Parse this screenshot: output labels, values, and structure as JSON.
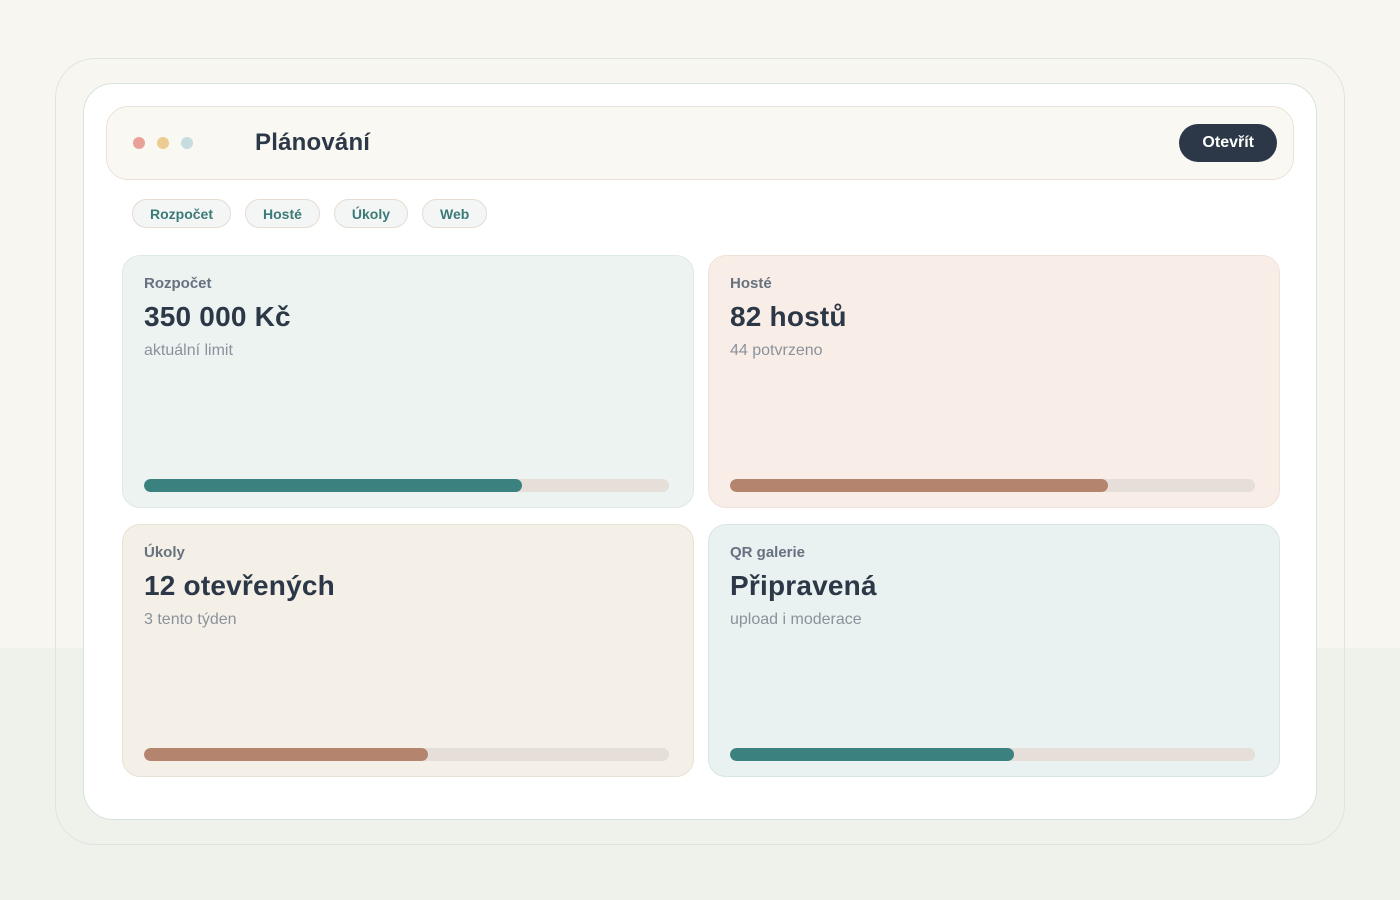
{
  "window": {
    "title": "Plánování",
    "open_button_label": "Otevřít"
  },
  "tabs": [
    "Rozpočet",
    "Hosté",
    "Úkoly",
    "Web"
  ],
  "cards": [
    {
      "label": "Rozpočet",
      "value": "350 000 Kč",
      "subtitle": "aktuální limit",
      "progress_percent": 72,
      "accent": "#3A8180"
    },
    {
      "label": "Hosté",
      "value": "82 hostů",
      "subtitle": "44 potvrzeno",
      "progress_percent": 72,
      "accent": "#B5846F"
    },
    {
      "label": "Úkoly",
      "value": "12 otevřených",
      "subtitle": "3 tento týden",
      "progress_percent": 54,
      "accent": "#B5846F"
    },
    {
      "label": "QR galerie",
      "value": "Připravená",
      "subtitle": "upload i moderace",
      "progress_percent": 54,
      "accent": "#3A8180"
    }
  ],
  "colors": {
    "navy": "#2C3847",
    "accent_teal": "#3A8180",
    "accent_salmon": "#B5846F",
    "progress_track": "#E6DED8",
    "chip_text": "#3C7A78",
    "dot_salmon": "#E8A29A",
    "dot_gold": "#ECCC91",
    "dot_blue": "#C7DCDF",
    "page_bg_top": "#F8F6F1",
    "page_bg_bottom": "#EFF1EB"
  }
}
